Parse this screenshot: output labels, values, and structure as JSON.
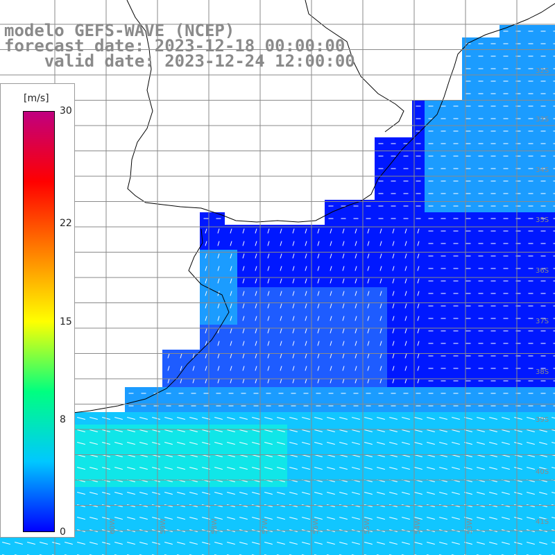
{
  "title": {
    "line1": "modelo GEFS-WAVE (NCEP)",
    "line2": "forecast date: 2023-12-18 00:00:00",
    "line3": "    valid date: 2023-12-24 12:00:00"
  },
  "colorbar": {
    "unit": "[m/s]",
    "ticks": [
      {
        "label": "30",
        "value": 30
      },
      {
        "label": "22",
        "value": 22
      },
      {
        "label": "15",
        "value": 15
      },
      {
        "label": "8",
        "value": 8
      },
      {
        "label": "0",
        "value": 0
      }
    ],
    "range": [
      0,
      30
    ],
    "colors": [
      "#0000ff",
      "#00c8ff",
      "#00ff80",
      "#ffff00",
      "#ff8000",
      "#ff0000",
      "#c00080"
    ]
  },
  "map": {
    "land_color": "#ffffff",
    "grid_color": "#8a8a8a",
    "arrow_color": "#ffffff",
    "lat_labels": [
      "32S",
      "33S",
      "34S",
      "35S",
      "36S",
      "37S",
      "38S",
      "39S",
      "40S",
      "41S"
    ],
    "lon_labels": [
      "61W",
      "60W",
      "59W",
      "58W",
      "57W",
      "56W",
      "55W",
      "54W",
      "53W"
    ],
    "field_colors": {
      "deep": "#0018ff",
      "mid": "#1e5cff",
      "light": "#1b9cff",
      "cyan": "#11c6ff",
      "aqua": "#10e6e8"
    }
  }
}
